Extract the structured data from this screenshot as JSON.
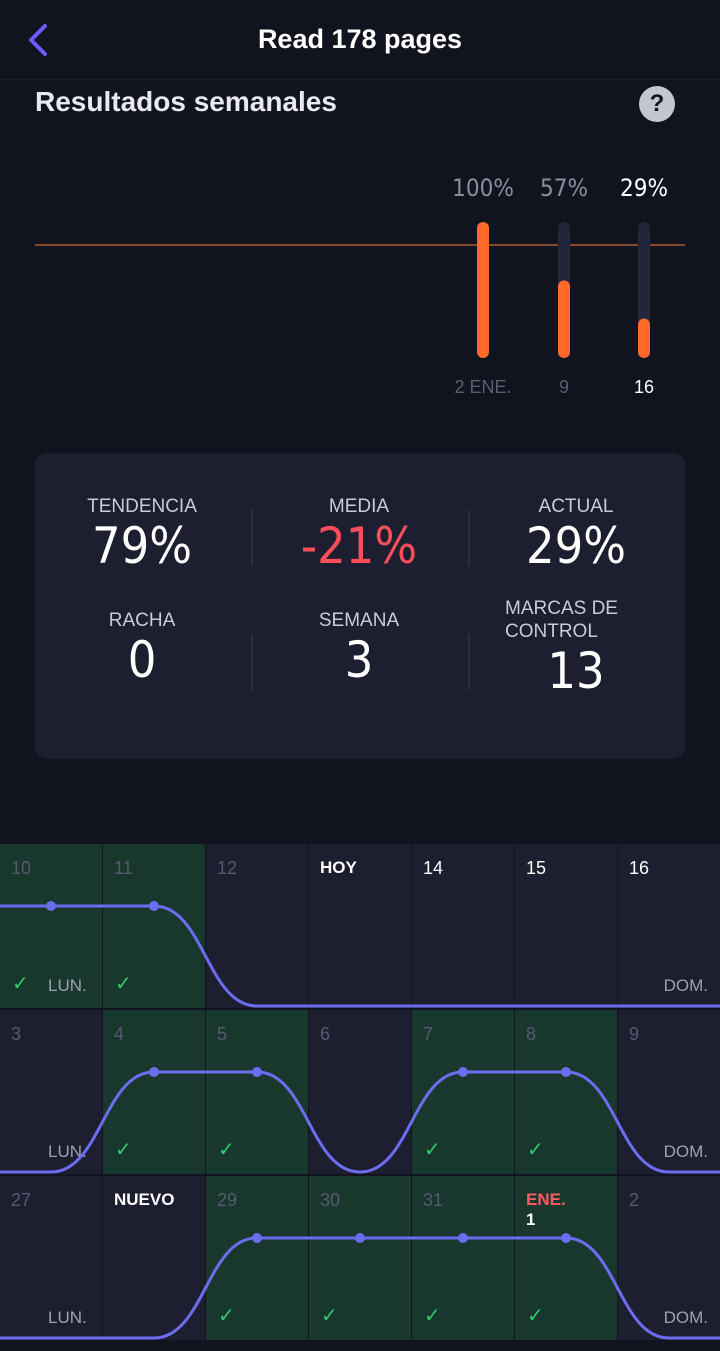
{
  "header": {
    "title": "Read 178 pages"
  },
  "section": {
    "title": "Resultados semanales",
    "help_label": "?"
  },
  "chart_data": {
    "type": "bar",
    "categories": [
      "2 ENE.",
      "9",
      "16"
    ],
    "values": [
      100,
      57,
      29
    ],
    "value_labels": [
      "100%",
      "57%",
      "29%"
    ],
    "ylim": [
      0,
      100
    ],
    "goal_line": 100,
    "colors": {
      "bar": "#ff6a2a",
      "track": "#23263a",
      "goal": "#b05a2a"
    }
  },
  "stats": [
    {
      "label": "TENDENCIA",
      "value": "79%"
    },
    {
      "label": "MEDIA",
      "value": "-21%",
      "color": "#ff4d5a"
    },
    {
      "label": "ACTUAL",
      "value": "29%"
    },
    {
      "label": "RACHA",
      "value": "0"
    },
    {
      "label": "SEMANA",
      "value": "3"
    },
    {
      "label": "MARCAS DE CONTROL",
      "value": "13"
    }
  ],
  "calendar": {
    "rows": [
      {
        "start_label": "LUN.",
        "end_label": "DOM.",
        "cells": [
          {
            "date": "10",
            "done": true
          },
          {
            "date": "11",
            "done": true
          },
          {
            "date": "12",
            "done": false
          },
          {
            "date": "HOY",
            "done": false,
            "style": "bold"
          },
          {
            "date": "14",
            "done": false,
            "style": "bright"
          },
          {
            "date": "15",
            "done": false,
            "style": "bright"
          },
          {
            "date": "16",
            "done": false,
            "style": "bright"
          }
        ]
      },
      {
        "start_label": "LUN.",
        "end_label": "DOM.",
        "cells": [
          {
            "date": "3",
            "done": false
          },
          {
            "date": "4",
            "done": true
          },
          {
            "date": "5",
            "done": true
          },
          {
            "date": "6",
            "done": false
          },
          {
            "date": "7",
            "done": true
          },
          {
            "date": "8",
            "done": true
          },
          {
            "date": "9",
            "done": false
          }
        ]
      },
      {
        "start_label": "LUN.",
        "end_label": "DOM.",
        "cells": [
          {
            "date": "27",
            "done": false
          },
          {
            "date": "NUEVO",
            "done": false,
            "style": "bold"
          },
          {
            "date": "29",
            "done": true
          },
          {
            "date": "30",
            "done": true
          },
          {
            "date": "31",
            "done": true
          },
          {
            "date": "ENE.",
            "sub": "1",
            "done": true,
            "style": "red"
          },
          {
            "date": "2",
            "done": false
          }
        ]
      }
    ],
    "check_glyph": "✓",
    "line_color": "#6c6cf0"
  }
}
